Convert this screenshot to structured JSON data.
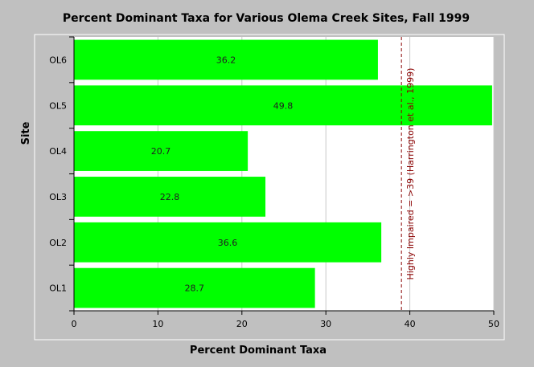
{
  "chart_data": {
    "type": "bar",
    "orientation": "horizontal",
    "title": "Percent Dominant Taxa for Various Olema Creek Sites, Fall 1999",
    "xlabel": "Percent Dominant Taxa",
    "ylabel": "Site",
    "categories": [
      "OL1",
      "OL2",
      "OL3",
      "OL4",
      "OL5",
      "OL6"
    ],
    "values": [
      28.7,
      36.6,
      22.8,
      20.7,
      49.8,
      36.2
    ],
    "data_labels": [
      "28.7",
      "36.6",
      "22.8",
      "20.7",
      "49.8",
      "36.2"
    ],
    "xlim": [
      0,
      50
    ],
    "x_ticks": [
      0,
      10,
      20,
      30,
      40,
      50
    ],
    "x_tick_labels": [
      "0",
      "10",
      "20",
      "30",
      "40",
      "50"
    ],
    "grid": "vertical",
    "bar_color": "#00ff00",
    "plot_background": "#ffffff",
    "page_background": "#c0c0c0",
    "reference_line": {
      "value": 39,
      "label": "Highly Impaired = >39 (Harrington et al., 1999)",
      "color": "#8b0000",
      "style": "dashed"
    }
  }
}
